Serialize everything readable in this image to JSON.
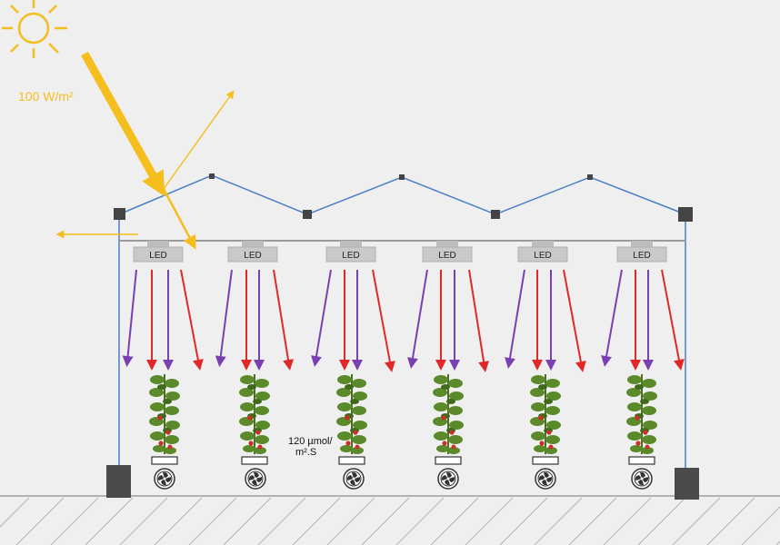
{
  "diagram": {
    "sun_irradiance_label": "100 W/m²",
    "led_label": "LED",
    "ppfd_label_line1": "120 µmol/",
    "ppfd_label_line2": "m².S"
  },
  "colors": {
    "background": "#efefef",
    "sun": "#f5be1f",
    "structure": "#4a7fc8",
    "frame": "#9a9a9a",
    "led_body": "#c9c9c9",
    "purple_light": "#7a3fb0",
    "red_light": "#e02828",
    "plant": "#5a8a2a",
    "ground": "#9e9e9e"
  },
  "icons": {
    "sun": "sun-icon",
    "plant": "tomato-plant-icon",
    "fan": "fan-icon",
    "led": "led-lamp-icon"
  },
  "led_units": 6,
  "plant_units": 6
}
